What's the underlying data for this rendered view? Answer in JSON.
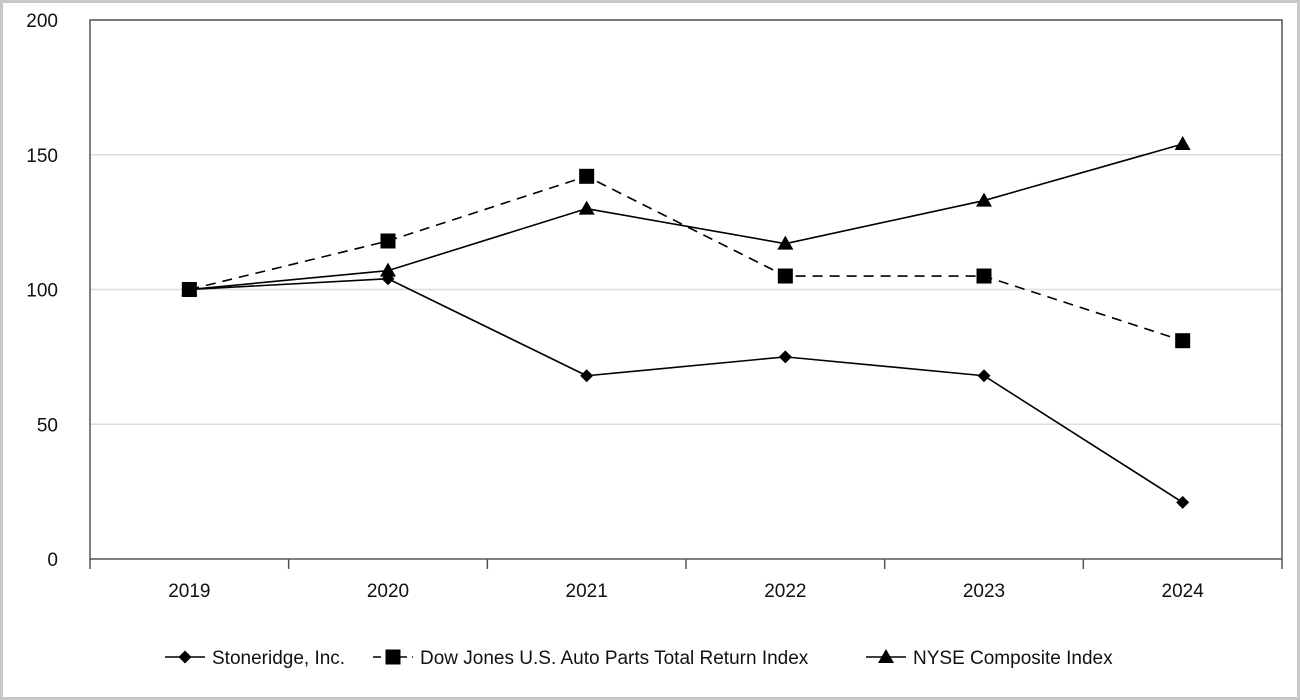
{
  "chart_data": {
    "type": "line",
    "title": "",
    "xlabel": "",
    "ylabel": "",
    "categories": [
      "2019",
      "2020",
      "2021",
      "2022",
      "2023",
      "2024"
    ],
    "ylim": [
      0,
      200
    ],
    "yticks": [
      0,
      50,
      100,
      150,
      200
    ],
    "grid": true,
    "legend_position": "bottom",
    "series": [
      {
        "name": "Stoneridge, Inc.",
        "values": [
          100,
          104,
          68,
          75,
          68,
          21
        ],
        "marker": "diamond",
        "line_style": "solid",
        "color": "#000000"
      },
      {
        "name": "Dow Jones U.S. Auto Parts Total Return Index",
        "values": [
          100,
          118,
          142,
          105,
          105,
          81
        ],
        "marker": "square",
        "line_style": "dashed",
        "color": "#000000"
      },
      {
        "name": "NYSE Composite Index",
        "values": [
          100,
          107,
          130,
          117,
          133,
          154
        ],
        "marker": "triangle",
        "line_style": "solid",
        "color": "#000000"
      }
    ]
  }
}
